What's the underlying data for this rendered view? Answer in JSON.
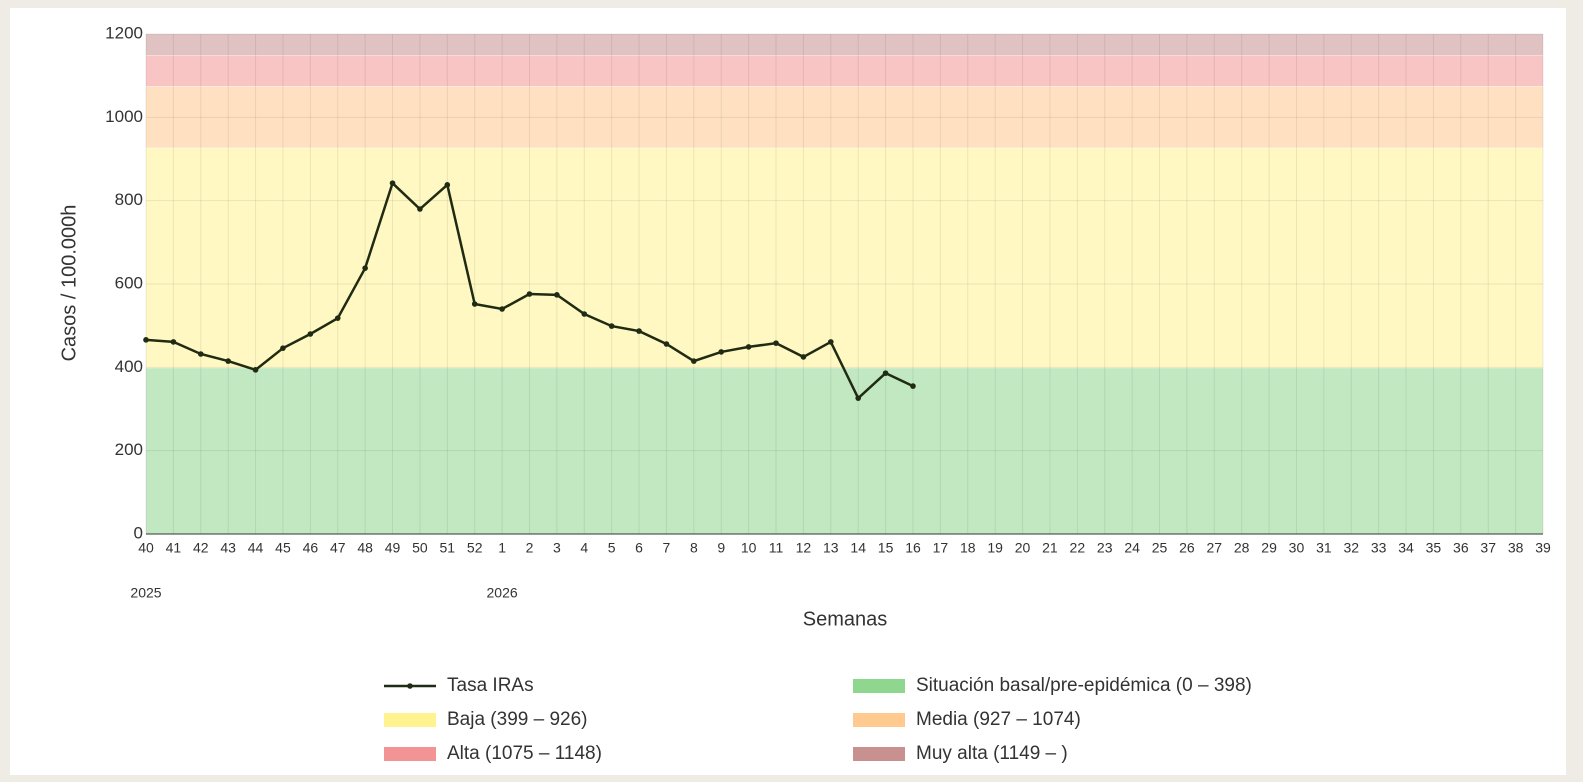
{
  "chart_data": {
    "type": "line",
    "xlabel": "Semanas",
    "ylabel": "Casos / 100.000h",
    "categories": [
      "40",
      "41",
      "42",
      "43",
      "44",
      "45",
      "46",
      "47",
      "48",
      "49",
      "50",
      "51",
      "52",
      "1",
      "2",
      "3",
      "4",
      "5",
      "6",
      "7",
      "8",
      "9",
      "10",
      "11",
      "12",
      "13",
      "14",
      "15",
      "16",
      "17",
      "18",
      "19",
      "20",
      "21",
      "22",
      "23",
      "24",
      "25",
      "26",
      "27",
      "28",
      "29",
      "30",
      "31",
      "32",
      "33",
      "34",
      "35",
      "36",
      "37",
      "38",
      "39"
    ],
    "year_labels": [
      {
        "text": "2025",
        "at": "40"
      },
      {
        "text": "2026",
        "at": "1"
      }
    ],
    "series": [
      {
        "name": "Tasa IRAs",
        "color": "#1f2b12",
        "values": [
          466,
          461,
          432,
          415,
          394,
          446,
          480,
          518,
          638,
          842,
          780,
          838,
          552,
          540,
          576,
          574,
          528,
          499,
          487,
          456,
          415,
          437,
          449,
          458,
          425,
          461,
          326,
          386,
          355,
          null,
          null,
          null,
          null,
          null,
          null,
          null,
          null,
          null,
          null,
          null,
          null,
          null,
          null,
          null,
          null,
          null,
          null,
          null,
          null,
          null,
          null,
          null
        ]
      }
    ],
    "bands": [
      {
        "name": "Situación basal/pre-epidémica (0 – 398)",
        "color": "#8fd68f",
        "from": 0,
        "to": 398
      },
      {
        "name": "Baja (399 – 926)",
        "color": "#fff38f",
        "from": 399,
        "to": 926
      },
      {
        "name": "Media (927 – 1074)",
        "color": "#ffc98f",
        "from": 927,
        "to": 1074
      },
      {
        "name": "Alta (1075 – 1148)",
        "color": "#f29494",
        "from": 1075,
        "to": 1148
      },
      {
        "name": "Muy alta (1149 – )",
        "color": "#c99090",
        "from": 1149,
        "to": null
      }
    ],
    "ylim": [
      0,
      1200
    ],
    "yticks": [
      0,
      200,
      400,
      600,
      800,
      1000,
      1200
    ],
    "grid": true
  }
}
